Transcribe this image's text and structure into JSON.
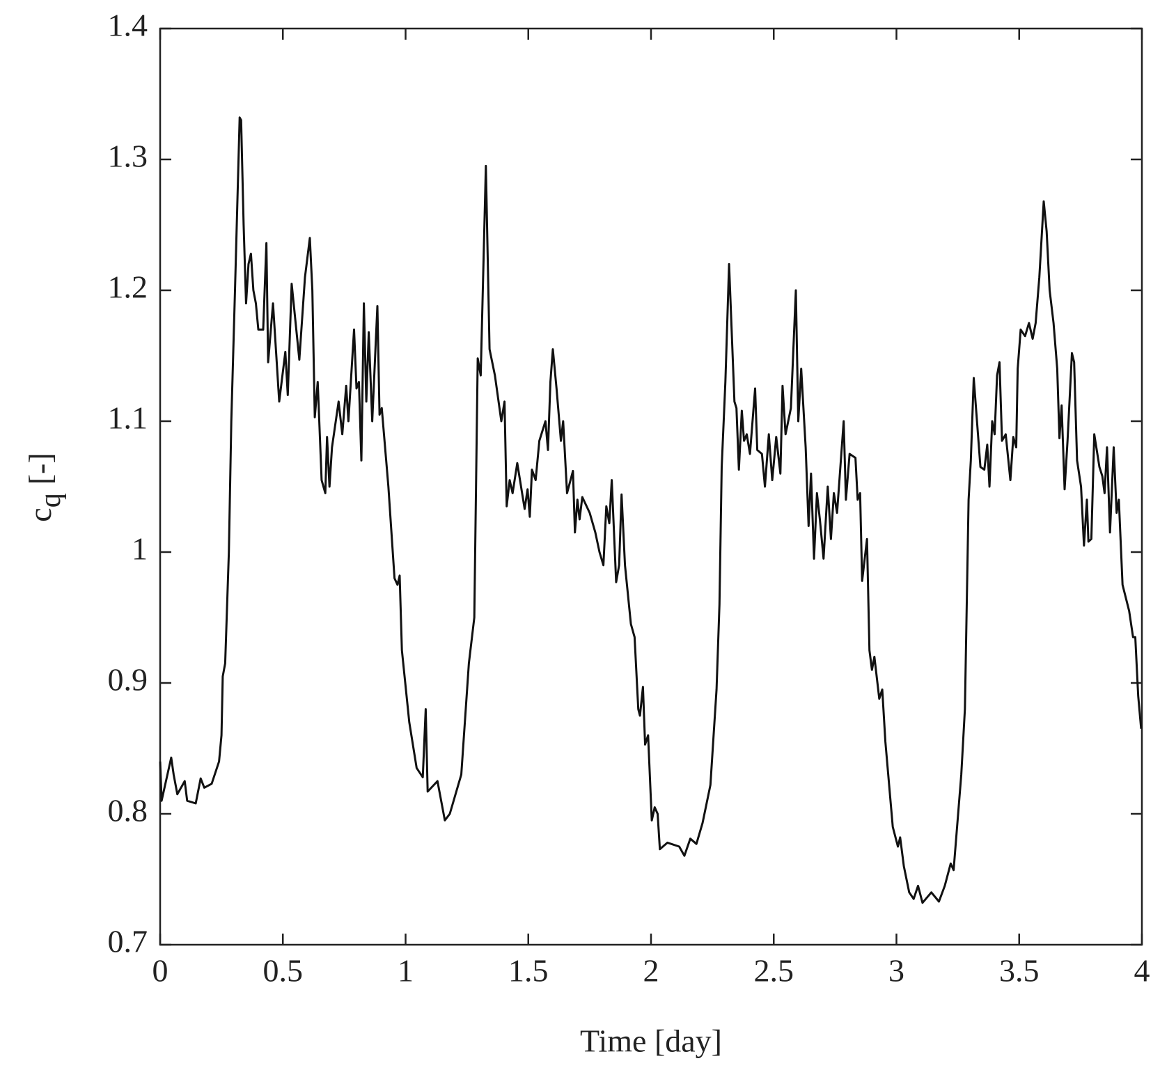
{
  "chart_data": {
    "type": "line",
    "xlabel": "Time [day]",
    "ylabel": "c",
    "ylabel_subscript": "q",
    "ylabel_unit": "[-]",
    "xlim": [
      0,
      4
    ],
    "ylim": [
      0.7,
      1.4
    ],
    "xticks": [
      0,
      0.5,
      1,
      1.5,
      2,
      2.5,
      3,
      3.5,
      4
    ],
    "yticks": [
      0.7,
      0.8,
      0.9,
      1,
      1.1,
      1.2,
      1.3,
      1.4
    ],
    "grid": false,
    "series": [
      {
        "color": "#111111",
        "x": [
          0,
          0.006,
          0.045,
          0.055,
          0.07,
          0.1,
          0.11,
          0.145,
          0.165,
          0.18,
          0.21,
          0.24,
          0.25,
          0.255,
          0.265,
          0.28,
          0.29,
          0.305,
          0.324,
          0.33,
          0.34,
          0.35,
          0.36,
          0.37,
          0.38,
          0.39,
          0.4,
          0.42,
          0.433,
          0.44,
          0.46,
          0.485,
          0.51,
          0.52,
          0.536,
          0.567,
          0.59,
          0.61,
          0.62,
          0.63,
          0.642,
          0.658,
          0.673,
          0.68,
          0.69,
          0.7,
          0.727,
          0.742,
          0.758,
          0.767,
          0.79,
          0.8,
          0.81,
          0.82,
          0.83,
          0.84,
          0.85,
          0.864,
          0.885,
          0.894,
          0.903,
          0.93,
          0.955,
          0.967,
          0.976,
          0.985,
          1.015,
          1.045,
          1.07,
          1.082,
          1.09,
          1.13,
          1.16,
          1.18,
          1.227,
          1.258,
          1.28,
          1.294,
          1.306,
          1.327,
          1.342,
          1.364,
          1.39,
          1.403,
          1.412,
          1.424,
          1.436,
          1.455,
          1.485,
          1.497,
          1.506,
          1.515,
          1.53,
          1.545,
          1.57,
          1.58,
          1.59,
          1.6,
          1.615,
          1.633,
          1.642,
          1.658,
          1.682,
          1.69,
          1.7,
          1.709,
          1.72,
          1.75,
          1.773,
          1.79,
          1.806,
          1.818,
          1.83,
          1.84,
          1.858,
          1.87,
          1.88,
          1.894,
          1.918,
          1.933,
          1.948,
          1.955,
          1.967,
          1.976,
          1.988,
          2.003,
          2.015,
          2.027,
          2.036,
          2.067,
          2.115,
          2.136,
          2.16,
          2.185,
          2.21,
          2.242,
          2.267,
          2.279,
          2.288,
          2.303,
          2.318,
          2.34,
          2.348,
          2.358,
          2.37,
          2.379,
          2.39,
          2.403,
          2.424,
          2.433,
          2.452,
          2.464,
          2.48,
          2.494,
          2.51,
          2.527,
          2.536,
          2.548,
          2.57,
          2.59,
          2.6,
          2.612,
          2.63,
          2.642,
          2.652,
          2.664,
          2.676,
          2.688,
          2.703,
          2.72,
          2.733,
          2.745,
          2.758,
          2.785,
          2.794,
          2.809,
          2.833,
          2.842,
          2.852,
          2.86,
          2.88,
          2.89,
          2.9,
          2.91,
          2.93,
          2.942,
          2.955,
          2.985,
          3.006,
          3.015,
          3.03,
          3.052,
          3.07,
          3.088,
          3.106,
          3.142,
          3.173,
          3.197,
          3.221,
          3.233,
          3.264,
          3.279,
          3.294,
          3.303,
          3.315,
          3.342,
          3.358,
          3.37,
          3.379,
          3.39,
          3.4,
          3.41,
          3.42,
          3.43,
          3.445,
          3.464,
          3.476,
          3.488,
          3.494,
          3.506,
          3.524,
          3.54,
          3.555,
          3.567,
          3.582,
          3.6,
          3.612,
          3.624,
          3.64,
          3.655,
          3.664,
          3.673,
          3.685,
          3.697,
          3.715,
          3.724,
          3.736,
          3.752,
          3.764,
          3.776,
          3.782,
          3.794,
          3.806,
          3.827,
          3.839,
          3.848,
          3.858,
          3.87,
          3.885,
          3.897,
          3.906,
          3.921,
          3.948,
          3.964,
          3.973,
          3.985,
          3.997
        ],
        "values": [
          0.84,
          0.81,
          0.843,
          0.83,
          0.815,
          0.825,
          0.81,
          0.808,
          0.827,
          0.82,
          0.823,
          0.84,
          0.86,
          0.905,
          0.915,
          1.0,
          1.1,
          1.2,
          1.332,
          1.33,
          1.25,
          1.19,
          1.22,
          1.228,
          1.2,
          1.19,
          1.17,
          1.17,
          1.236,
          1.145,
          1.19,
          1.115,
          1.153,
          1.12,
          1.205,
          1.147,
          1.21,
          1.24,
          1.2,
          1.103,
          1.13,
          1.055,
          1.045,
          1.088,
          1.05,
          1.08,
          1.115,
          1.09,
          1.127,
          1.1,
          1.17,
          1.125,
          1.13,
          1.07,
          1.19,
          1.115,
          1.168,
          1.1,
          1.188,
          1.105,
          1.11,
          1.05,
          0.98,
          0.975,
          0.982,
          0.925,
          0.87,
          0.835,
          0.828,
          0.88,
          0.817,
          0.825,
          0.795,
          0.8,
          0.83,
          0.915,
          0.95,
          1.148,
          1.135,
          1.295,
          1.155,
          1.135,
          1.1,
          1.115,
          1.035,
          1.055,
          1.045,
          1.068,
          1.033,
          1.048,
          1.027,
          1.063,
          1.055,
          1.085,
          1.1,
          1.078,
          1.13,
          1.155,
          1.125,
          1.085,
          1.1,
          1.045,
          1.062,
          1.015,
          1.04,
          1.025,
          1.042,
          1.03,
          1.015,
          1.0,
          0.99,
          1.035,
          1.022,
          1.055,
          0.977,
          0.99,
          1.044,
          0.99,
          0.945,
          0.935,
          0.88,
          0.875,
          0.897,
          0.853,
          0.86,
          0.795,
          0.805,
          0.8,
          0.773,
          0.778,
          0.775,
          0.768,
          0.781,
          0.777,
          0.793,
          0.822,
          0.895,
          0.96,
          1.065,
          1.13,
          1.22,
          1.115,
          1.11,
          1.063,
          1.108,
          1.085,
          1.09,
          1.075,
          1.125,
          1.078,
          1.075,
          1.05,
          1.09,
          1.055,
          1.088,
          1.06,
          1.127,
          1.09,
          1.11,
          1.2,
          1.1,
          1.14,
          1.08,
          1.02,
          1.06,
          0.995,
          1.045,
          1.025,
          0.995,
          1.05,
          1.01,
          1.045,
          1.03,
          1.1,
          1.04,
          1.075,
          1.072,
          1.04,
          1.045,
          0.978,
          1.01,
          0.925,
          0.91,
          0.92,
          0.888,
          0.895,
          0.855,
          0.79,
          0.775,
          0.782,
          0.76,
          0.74,
          0.735,
          0.745,
          0.732,
          0.74,
          0.733,
          0.745,
          0.762,
          0.757,
          0.83,
          0.88,
          1.04,
          1.07,
          1.133,
          1.065,
          1.063,
          1.082,
          1.05,
          1.1,
          1.09,
          1.135,
          1.145,
          1.085,
          1.09,
          1.055,
          1.088,
          1.08,
          1.14,
          1.17,
          1.165,
          1.175,
          1.163,
          1.175,
          1.21,
          1.268,
          1.245,
          1.2,
          1.175,
          1.14,
          1.087,
          1.112,
          1.048,
          1.085,
          1.152,
          1.145,
          1.07,
          1.05,
          1.005,
          1.04,
          1.008,
          1.01,
          1.09,
          1.065,
          1.058,
          1.045,
          1.08,
          1.015,
          1.08,
          1.03,
          1.04,
          0.975,
          0.955,
          0.935,
          0.935,
          0.89,
          0.865
        ]
      }
    ]
  }
}
